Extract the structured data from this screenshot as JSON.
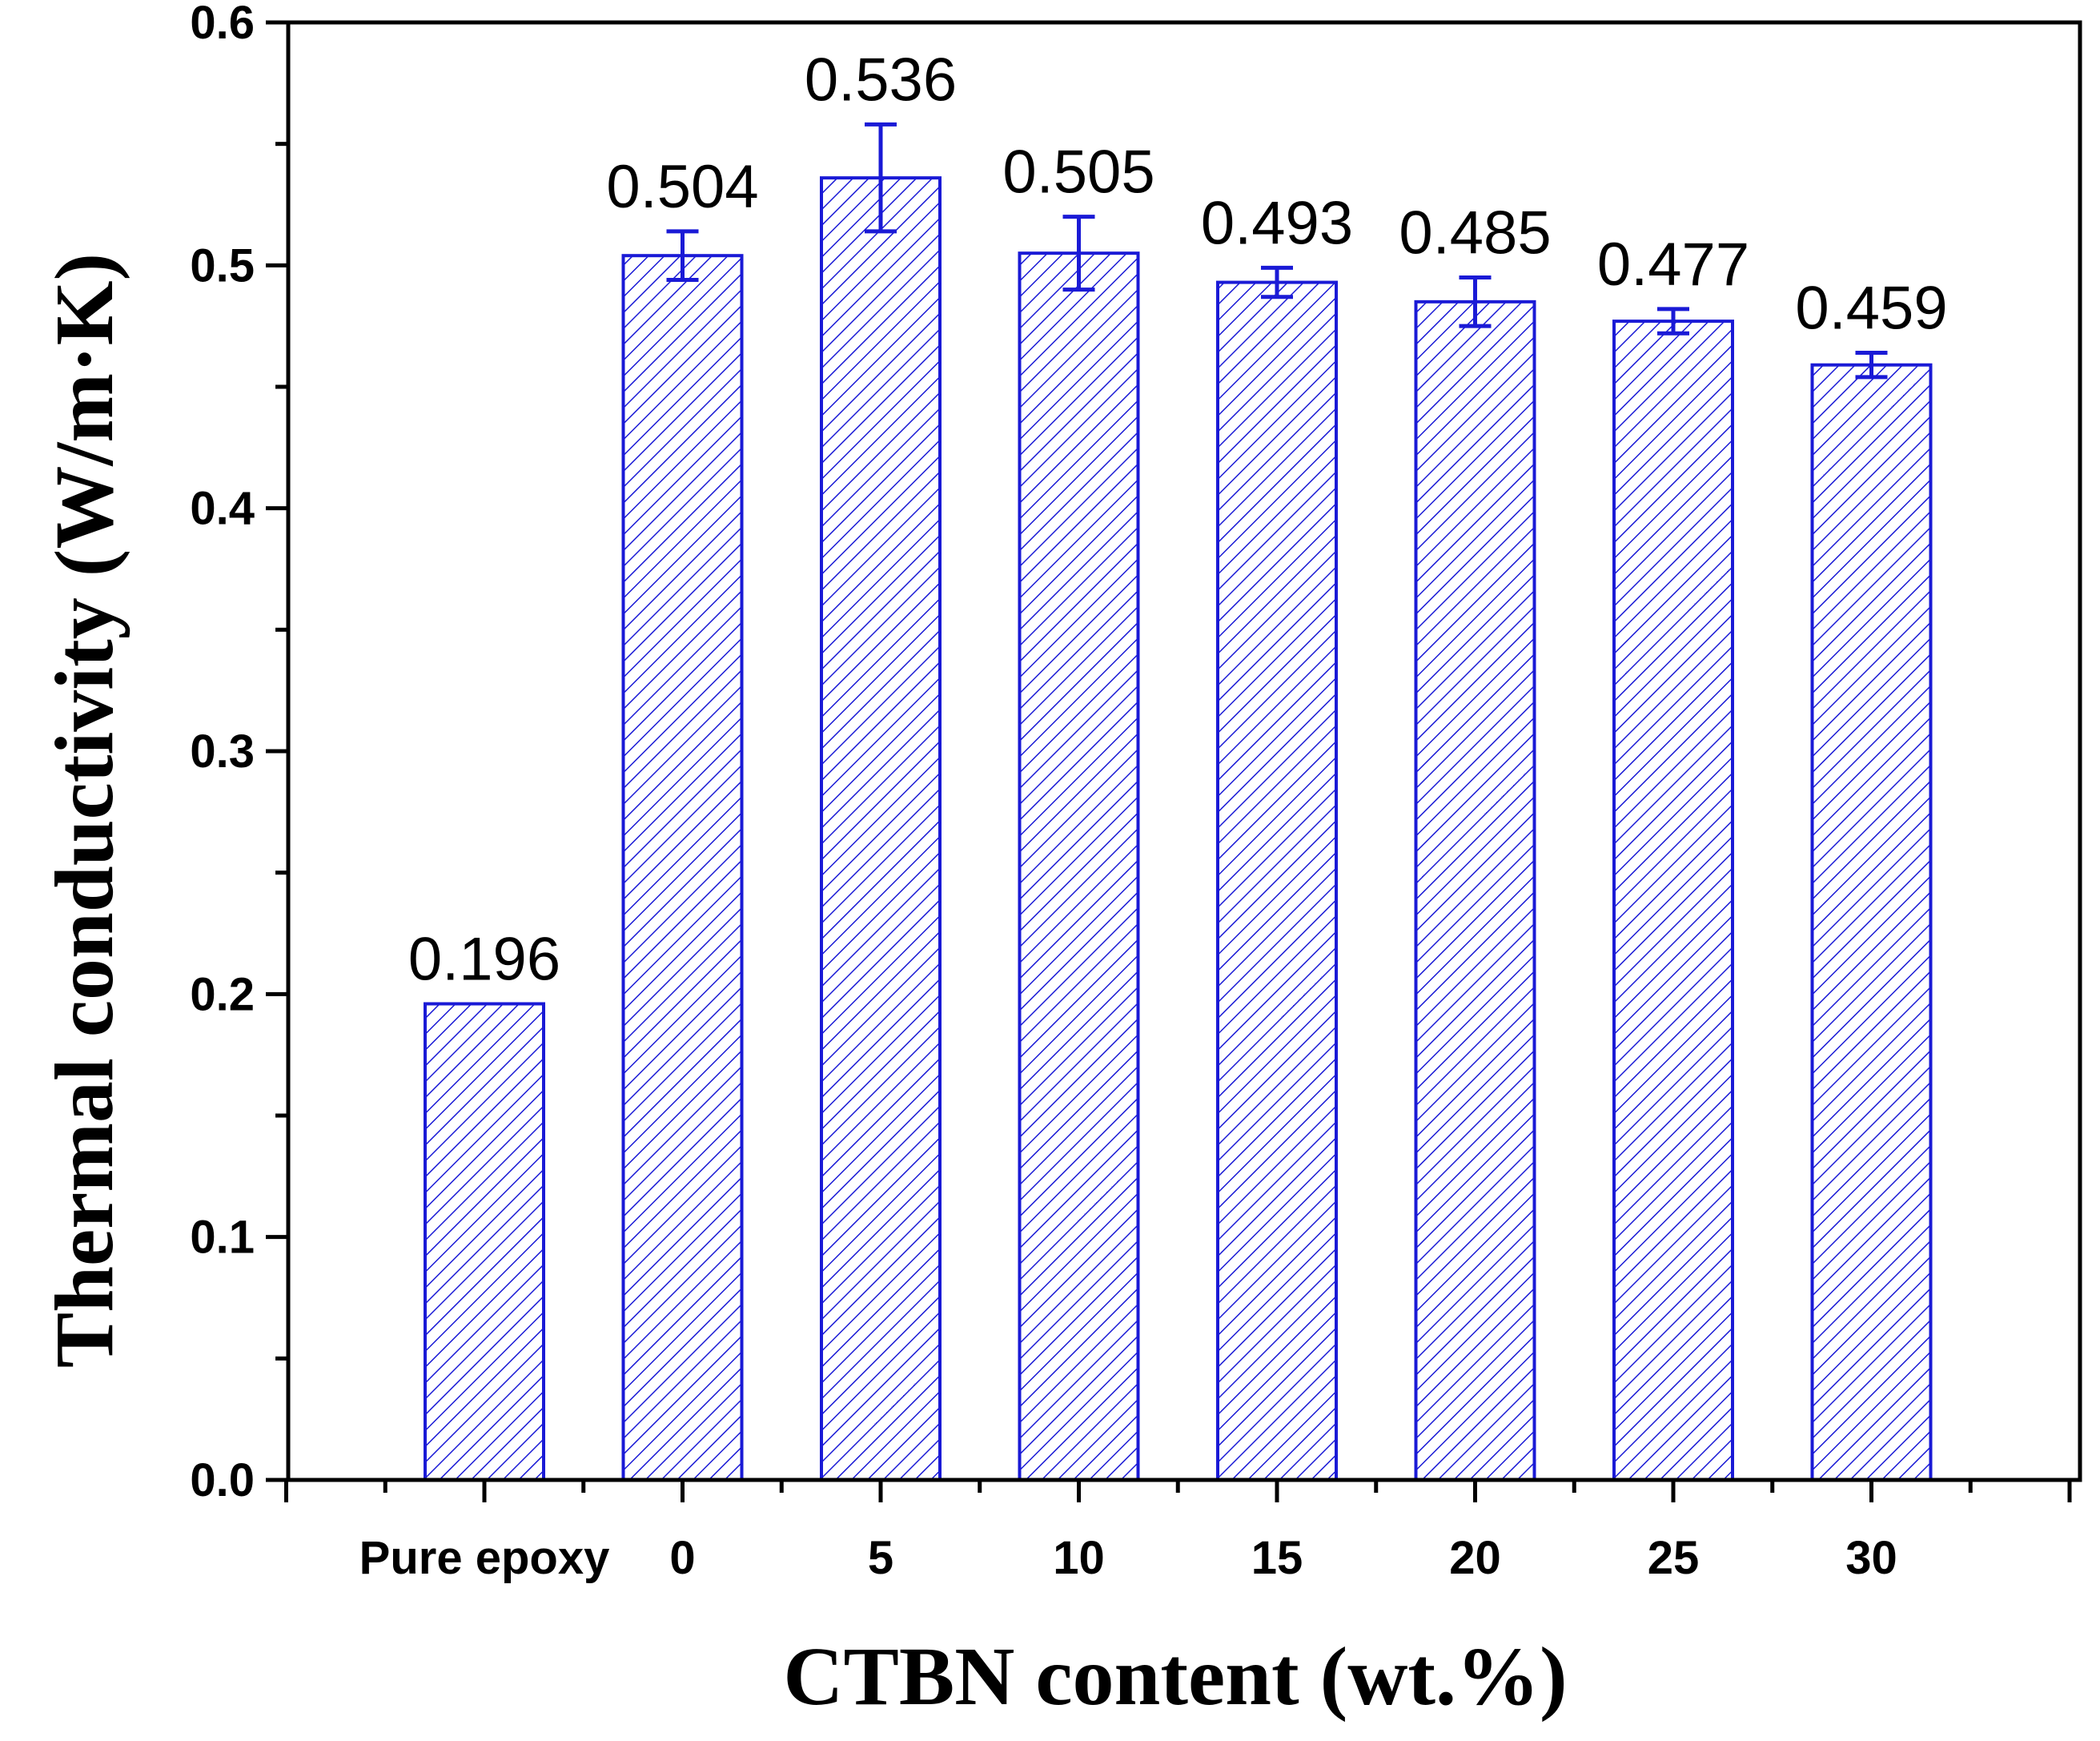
{
  "chart_data": {
    "type": "bar",
    "title": "",
    "xlabel": "CTBN content (wt.%)",
    "ylabel": "Thermal conductivity (W/m·K)",
    "categories": [
      "Pure epoxy",
      "0",
      "5",
      "10",
      "15",
      "20",
      "25",
      "30"
    ],
    "values": [
      0.196,
      0.504,
      0.536,
      0.505,
      0.493,
      0.485,
      0.477,
      0.459
    ],
    "data_labels": [
      "0.196",
      "0.504",
      "0.536",
      "0.505",
      "0.493",
      "0.485",
      "0.477",
      "0.459"
    ],
    "errors": [
      0,
      0.01,
      0.022,
      0.015,
      0.006,
      0.01,
      0.005,
      0.005
    ],
    "ylim": [
      0,
      0.6
    ],
    "yticks": [
      0.0,
      0.1,
      0.2,
      0.3,
      0.4,
      0.5,
      0.6
    ],
    "ytick_labels": [
      "0.0",
      "0.1",
      "0.2",
      "0.3",
      "0.4",
      "0.5",
      "0.6"
    ],
    "bar_style": "diagonal hatch",
    "grid": false,
    "colors": {
      "bar": "#1a1ad6",
      "error": "#1a1ad6",
      "axis": "#000000"
    }
  }
}
